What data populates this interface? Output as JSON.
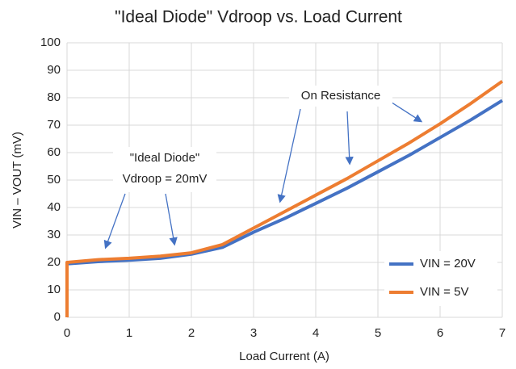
{
  "chart_data": {
    "type": "line",
    "title": "\"Ideal Diode\" Vdroop vs. Load Current",
    "x_label": "Load Current (A)",
    "y_label": "VIN – VOUT (mV)",
    "x": [
      0,
      0,
      0.5,
      1,
      1.5,
      2,
      2.5,
      3,
      3.5,
      4,
      4.5,
      5,
      5.5,
      6,
      6.5,
      7
    ],
    "series": [
      {
        "name": "VIN = 20V",
        "color": "#4472c4",
        "values": [
          0,
          19.5,
          20.3,
          20.8,
          21.5,
          23,
          25.5,
          31,
          36,
          41.5,
          47,
          53,
          59,
          65.5,
          72,
          79
        ]
      },
      {
        "name": "VIN = 5V",
        "color": "#ed7d31",
        "values": [
          0,
          20,
          21,
          21.5,
          22.3,
          23.5,
          26.5,
          32.5,
          38.5,
          44.5,
          50.5,
          57,
          63.5,
          70.5,
          78,
          86
        ]
      }
    ],
    "xlim": [
      0,
      7
    ],
    "xticks": [
      0,
      1,
      2,
      3,
      4,
      5,
      6,
      7
    ],
    "ylim": [
      0,
      100
    ],
    "yticks": [
      0,
      10,
      20,
      30,
      40,
      50,
      60,
      70,
      80,
      90,
      100
    ],
    "grid": true,
    "legend": "lower right",
    "annotations": [
      "\"Ideal Diode\"",
      "Vdroop = 20mV",
      "On Resistance"
    ]
  }
}
